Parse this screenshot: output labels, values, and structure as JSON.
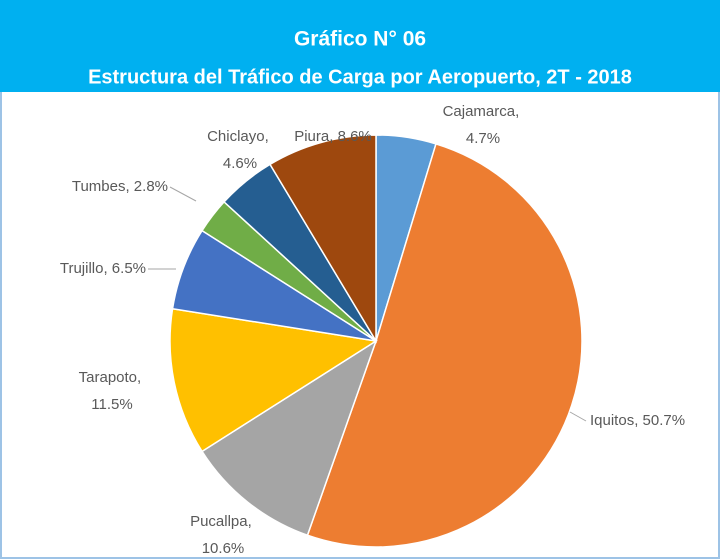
{
  "chart_data": {
    "type": "pie",
    "title": "Gráfico N° 06",
    "subtitle": "Estructura del Tráfico de Carga por Aeropuerto, 2T - 2018",
    "values": [
      4.7,
      50.7,
      10.6,
      11.5,
      6.5,
      2.8,
      4.6,
      8.6
    ],
    "value_labels": [
      "Cajamarca, 4.7%",
      "Iquitos, 50.7%",
      "Pucallpa, 10.6%",
      "Tarapoto, 11.5%",
      "Trujillo, 6.5%",
      "Tumbes, 2.8%",
      "Chiclayo, 4.6%",
      "Piura, 8.6%"
    ],
    "colors": [
      "#5b9bd5",
      "#ed7d31",
      "#a5a5a5",
      "#ffc000",
      "#4472c4",
      "#70ad47",
      "#255e91",
      "#9e480e"
    ]
  }
}
